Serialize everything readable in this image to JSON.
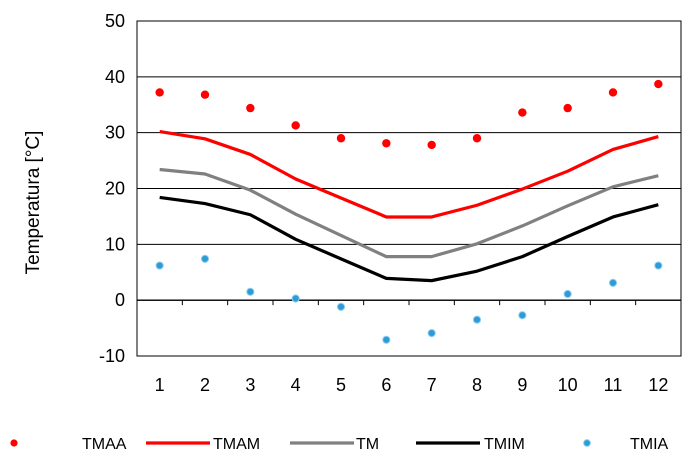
{
  "chart_data": {
    "type": "line",
    "ylabel": "Temperatura [°C]",
    "xlabel": "",
    "x": [
      1,
      2,
      3,
      4,
      5,
      6,
      7,
      8,
      9,
      10,
      11,
      12
    ],
    "xticks": [
      "1",
      "2",
      "3",
      "4",
      "5",
      "6",
      "7",
      "8",
      "9",
      "10",
      "11",
      "12"
    ],
    "ylim": [
      -10,
      50
    ],
    "yticks": [
      -10,
      0,
      10,
      20,
      30,
      40,
      50
    ],
    "grid": "horizontal",
    "legend_placement": "bottom",
    "series": [
      {
        "name": "TMAA",
        "style": "points",
        "color": "#ff0000",
        "values": [
          37.2,
          36.8,
          34.4,
          31.3,
          29.0,
          28.1,
          27.8,
          29.0,
          33.6,
          34.4,
          37.2,
          38.7
        ]
      },
      {
        "name": "TMAM",
        "style": "line",
        "color": "#ff0000",
        "values": [
          30.2,
          28.9,
          26.1,
          21.7,
          18.3,
          14.9,
          14.9,
          17.0,
          19.9,
          23.1,
          27.0,
          29.3
        ]
      },
      {
        "name": "TM",
        "style": "line",
        "color": "#808080",
        "values": [
          23.4,
          22.6,
          19.7,
          15.4,
          11.6,
          7.8,
          7.8,
          10.1,
          13.3,
          16.9,
          20.3,
          22.3
        ]
      },
      {
        "name": "TMIM",
        "style": "line",
        "color": "#000000",
        "values": [
          18.4,
          17.3,
          15.3,
          10.9,
          7.4,
          3.9,
          3.5,
          5.2,
          7.8,
          11.4,
          14.9,
          17.1
        ]
      },
      {
        "name": "TMIA",
        "style": "points",
        "color": "#2e9bd6",
        "values": [
          6.2,
          7.4,
          1.5,
          0.3,
          -1.2,
          -7.1,
          -5.9,
          -3.5,
          -2.7,
          1.1,
          3.1,
          6.2
        ]
      }
    ]
  }
}
